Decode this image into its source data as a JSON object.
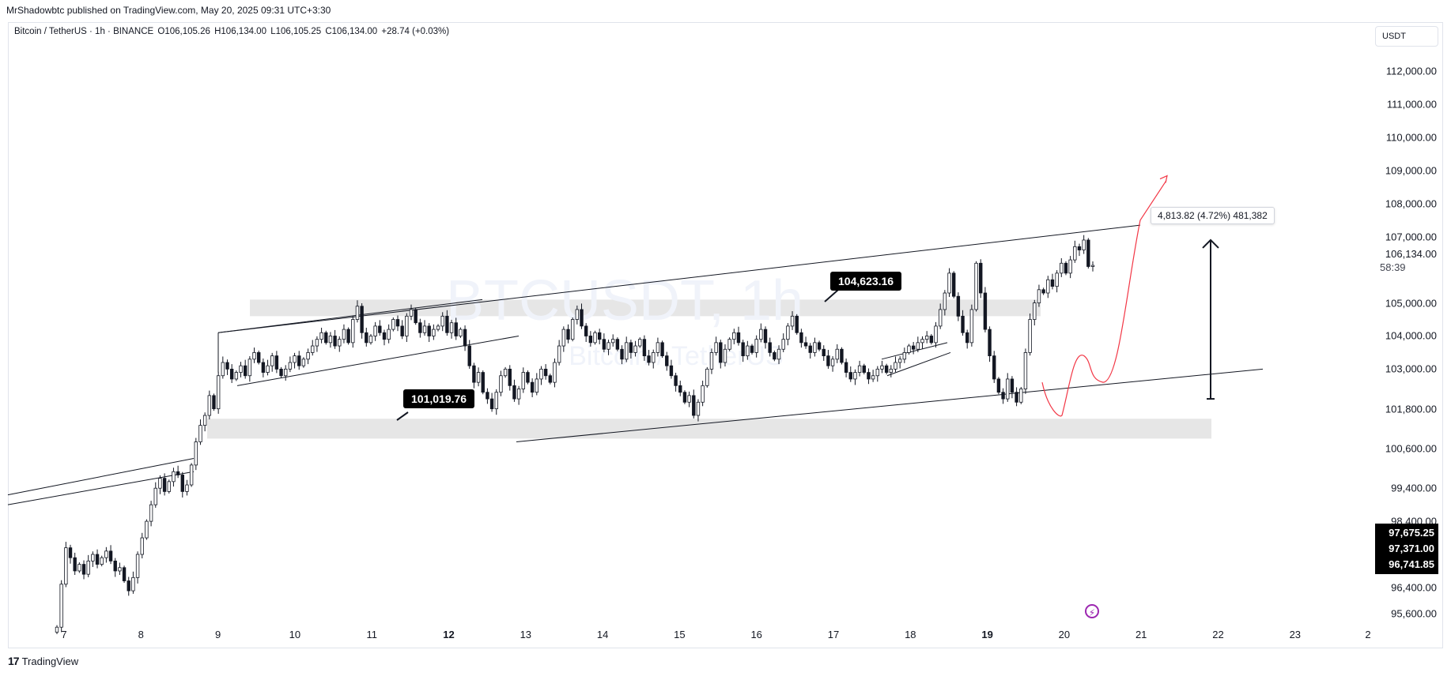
{
  "header": {
    "publish_line": "MrShadowbtc published on TradingView.com, May 20, 2025 09:31 UTC+3:30"
  },
  "legend": {
    "symbol": "Bitcoin / TetherUS · 1h · BINANCE",
    "open": "O106,105.26",
    "high": "H106,134.00",
    "low": "L106,105.25",
    "close": "C106,134.00",
    "change": "+28.74 (+0.03%)"
  },
  "currency": "USDT",
  "watermark": {
    "symbol": "BTCUSDT, 1h",
    "name": "Bitcoin / TetherUS"
  },
  "yaxis": {
    "ticks": [
      {
        "value": 112000,
        "label": "112,000.00"
      },
      {
        "value": 111000,
        "label": "111,000.00"
      },
      {
        "value": 110000,
        "label": "110,000.00"
      },
      {
        "value": 109000,
        "label": "109,000.00"
      },
      {
        "value": 108000,
        "label": "108,000.00"
      },
      {
        "value": 107000,
        "label": "107,000.00"
      },
      {
        "value": 105000,
        "label": "105,000.00"
      },
      {
        "value": 104000,
        "label": "104,000.00"
      },
      {
        "value": 103000,
        "label": "103,000.00"
      },
      {
        "value": 101800,
        "label": "101,800.00"
      },
      {
        "value": 100600,
        "label": "100,600.00"
      },
      {
        "value": 99400,
        "label": "99,400.00"
      },
      {
        "value": 98400,
        "label": "98,400.00"
      },
      {
        "value": 96400,
        "label": "96,400.00"
      },
      {
        "value": 95600,
        "label": "95,600.00"
      }
    ],
    "current_price": "106,134.00",
    "countdown": "58:39",
    "dark_labels": [
      "97,675.25",
      "97,371.00",
      "96,741.85"
    ]
  },
  "xaxis": {
    "ticks": [
      {
        "label": "7",
        "bold": false
      },
      {
        "label": "8",
        "bold": false
      },
      {
        "label": "9",
        "bold": false
      },
      {
        "label": "10",
        "bold": false
      },
      {
        "label": "11",
        "bold": false
      },
      {
        "label": "12",
        "bold": true
      },
      {
        "label": "13",
        "bold": false
      },
      {
        "label": "14",
        "bold": false
      },
      {
        "label": "15",
        "bold": false
      },
      {
        "label": "16",
        "bold": false
      },
      {
        "label": "17",
        "bold": false
      },
      {
        "label": "18",
        "bold": false
      },
      {
        "label": "19",
        "bold": true
      },
      {
        "label": "20",
        "bold": false
      },
      {
        "label": "21",
        "bold": false
      },
      {
        "label": "22",
        "bold": false
      },
      {
        "label": "23",
        "bold": false
      },
      {
        "label": "2",
        "bold": false
      }
    ]
  },
  "annotations": {
    "low_callout": "101,019.76",
    "high_callout": "104,623.16",
    "measure": "4,813.82 (4.72%) 481,382"
  },
  "colors": {
    "up": "#131722",
    "down": "#131722",
    "projection": "#f23645",
    "zone": "#e6e6e6"
  },
  "chart_data": {
    "type": "candlestick",
    "symbol": "BTCUSDT",
    "timeframe": "1h",
    "ylim": [
      95300,
      113200
    ],
    "closes": [
      95200,
      96500,
      97600,
      97300,
      96900,
      97100,
      96800,
      97200,
      97400,
      97100,
      97300,
      97500,
      97200,
      96900,
      97000,
      96600,
      96300,
      96700,
      97400,
      97900,
      98400,
      98900,
      99400,
      99700,
      99300,
      99600,
      99900,
      99800,
      99300,
      99500,
      100100,
      100800,
      101300,
      101600,
      102200,
      101800,
      102800,
      103200,
      103000,
      102700,
      102900,
      103100,
      102800,
      103300,
      103500,
      103200,
      102900,
      103100,
      103400,
      103000,
      102800,
      103000,
      103200,
      103400,
      103100,
      103300,
      103500,
      103700,
      103900,
      104100,
      103800,
      104000,
      103700,
      103900,
      104200,
      103800,
      104500,
      104900,
      104100,
      103800,
      104000,
      104300,
      104100,
      103900,
      104200,
      104500,
      104300,
      104000,
      104600,
      104800,
      104400,
      104100,
      104300,
      104000,
      104200,
      104300,
      104600,
      104100,
      104400,
      104000,
      104200,
      103700,
      103100,
      102600,
      102900,
      102300,
      102100,
      101800,
      102300,
      102800,
      103000,
      102500,
      102100,
      102400,
      102900,
      102600,
      102300,
      102700,
      103000,
      102800,
      102600,
      103200,
      103700,
      104200,
      103900,
      104500,
      104800,
      104300,
      104000,
      103800,
      104100,
      103900,
      103600,
      103800,
      103900,
      103600,
      103300,
      103800,
      103500,
      103700,
      103900,
      103400,
      103200,
      103500,
      103800,
      103400,
      103100,
      102800,
      102500,
      102300,
      102000,
      102200,
      101600,
      102000,
      102500,
      103000,
      103500,
      103800,
      103200,
      103600,
      103900,
      104100,
      103800,
      103400,
      103700,
      103500,
      103900,
      104200,
      103800,
      103500,
      103300,
      103600,
      103900,
      104300,
      104600,
      104100,
      103800,
      103700,
      103500,
      103800,
      103600,
      103400,
      103100,
      103300,
      103600,
      103200,
      102900,
      102700,
      102900,
      103100,
      102900,
      102700,
      102800,
      103000,
      103100,
      102900,
      103000,
      103200,
      103300,
      103500,
      103700,
      103600,
      103800,
      103900,
      104000,
      103800,
      104300,
      104800,
      105300,
      105900,
      105200,
      104600,
      104100,
      103800,
      104800,
      106200,
      105300,
      104200,
      103400,
      102700,
      102300,
      102100,
      102700,
      102300,
      102000,
      102400,
      103500,
      104500,
      105000,
      105400,
      105300,
      105700,
      105500,
      105900,
      106200,
      105900,
      106300,
      106700,
      106600,
      106900,
      106100,
      106134
    ],
    "patterns": [
      "ascending channel",
      "horizontal support zone",
      "horizontal resistance zone",
      "rising wedge",
      "projected move"
    ]
  }
}
